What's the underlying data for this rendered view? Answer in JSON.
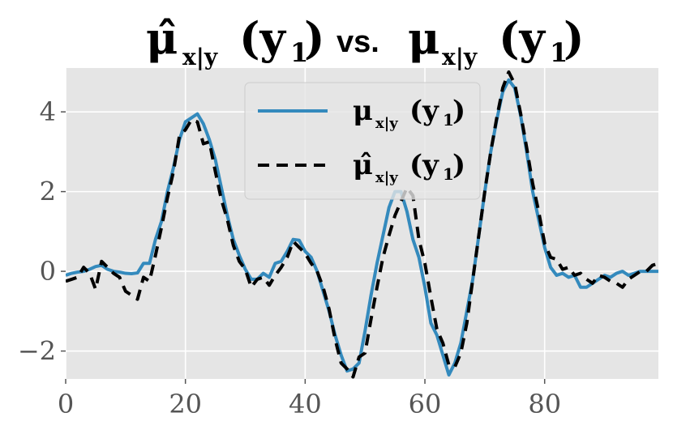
{
  "chart_data": {
    "type": "line",
    "title_parts": {
      "hat_mu": "μ̂",
      "subscript": "x|y",
      "arg": "(y",
      "arg_sub": "1",
      "arg_close": ")",
      "vs": "vs.",
      "mu": "μ"
    },
    "xlim": [
      0,
      99
    ],
    "ylim": [
      -2.7,
      5.1
    ],
    "xticks": [
      0,
      20,
      40,
      60,
      80
    ],
    "yticks": [
      -2,
      0,
      2,
      4
    ],
    "ytick_labels": [
      "−2",
      "0",
      "2",
      "4"
    ],
    "grid": true,
    "legend_position": "top-center",
    "colors": {
      "background": "#e5e5e5",
      "grid": "#ffffff",
      "mu": "#348abd",
      "mu_hat": "#000000"
    },
    "x": [
      0,
      1,
      2,
      3,
      4,
      5,
      6,
      7,
      8,
      9,
      10,
      11,
      12,
      13,
      14,
      15,
      16,
      17,
      18,
      19,
      20,
      21,
      22,
      23,
      24,
      25,
      26,
      27,
      28,
      29,
      30,
      31,
      32,
      33,
      34,
      35,
      36,
      37,
      38,
      39,
      40,
      41,
      42,
      43,
      44,
      45,
      46,
      47,
      48,
      49,
      50,
      51,
      52,
      53,
      54,
      55,
      56,
      57,
      58,
      59,
      60,
      61,
      62,
      63,
      64,
      65,
      66,
      67,
      68,
      69,
      70,
      71,
      72,
      73,
      74,
      75,
      76,
      77,
      78,
      79,
      80,
      81,
      82,
      83,
      84,
      85,
      86,
      87,
      88,
      89,
      90,
      91,
      92,
      93,
      94,
      95,
      96,
      97,
      98,
      99
    ],
    "series": [
      {
        "key": "mu",
        "values": [
          -0.1,
          -0.05,
          -0.02,
          0.0,
          0.05,
          0.12,
          0.15,
          0.05,
          0.0,
          -0.02,
          -0.05,
          -0.06,
          -0.04,
          0.2,
          0.2,
          0.8,
          1.25,
          2.0,
          2.6,
          3.3,
          3.75,
          3.85,
          3.95,
          3.7,
          3.3,
          2.8,
          2.1,
          1.4,
          0.8,
          0.4,
          0.05,
          -0.2,
          -0.2,
          -0.05,
          -0.15,
          0.2,
          0.25,
          0.5,
          0.8,
          0.78,
          0.5,
          0.35,
          0.0,
          -0.5,
          -1.0,
          -1.6,
          -2.1,
          -2.5,
          -2.45,
          -2.3,
          -1.5,
          -0.6,
          0.2,
          0.9,
          1.6,
          2.0,
          2.0,
          1.5,
          0.8,
          0.35,
          -0.4,
          -1.3,
          -1.6,
          -2.1,
          -2.6,
          -2.3,
          -1.8,
          -1.0,
          -0.2,
          0.9,
          2.0,
          3.0,
          3.8,
          4.5,
          4.8,
          4.6,
          3.9,
          3.0,
          2.0,
          1.3,
          0.6,
          0.1,
          -0.1,
          -0.05,
          -0.15,
          -0.1,
          -0.4,
          -0.4,
          -0.3,
          -0.2,
          -0.1,
          -0.15,
          -0.05,
          0.0,
          -0.1,
          -0.05,
          0.0,
          0.0,
          0.0,
          0.0
        ]
      },
      {
        "key": "mu_hat",
        "values": [
          -0.25,
          -0.2,
          -0.15,
          0.1,
          -0.05,
          -0.45,
          0.25,
          0.1,
          -0.05,
          -0.15,
          -0.5,
          -0.6,
          -0.7,
          -0.15,
          -0.25,
          0.4,
          1.1,
          1.85,
          2.5,
          3.4,
          3.55,
          3.8,
          3.75,
          3.2,
          3.25,
          2.5,
          1.8,
          1.3,
          0.65,
          0.25,
          0.05,
          -0.4,
          -0.2,
          -0.15,
          -0.35,
          -0.1,
          0.1,
          0.35,
          0.75,
          0.6,
          0.45,
          0.2,
          0.0,
          -0.4,
          -0.95,
          -1.7,
          -2.3,
          -2.45,
          -2.65,
          -2.15,
          -2.05,
          -1.2,
          -0.4,
          0.35,
          0.9,
          1.4,
          1.75,
          2.1,
          1.9,
          0.8,
          0.2,
          -0.65,
          -1.45,
          -1.8,
          -2.35,
          -2.4,
          -2.05,
          -1.3,
          -0.2,
          0.9,
          2.0,
          3.0,
          3.85,
          4.6,
          5.0,
          4.7,
          3.95,
          3.1,
          2.2,
          1.5,
          0.7,
          0.35,
          0.3,
          0.05,
          0.1,
          -0.1,
          -0.05,
          -0.2,
          -0.3,
          -0.1,
          -0.15,
          -0.25,
          -0.3,
          -0.4,
          -0.2,
          -0.1,
          0.0,
          0.0,
          0.15,
          0.2
        ]
      }
    ]
  }
}
